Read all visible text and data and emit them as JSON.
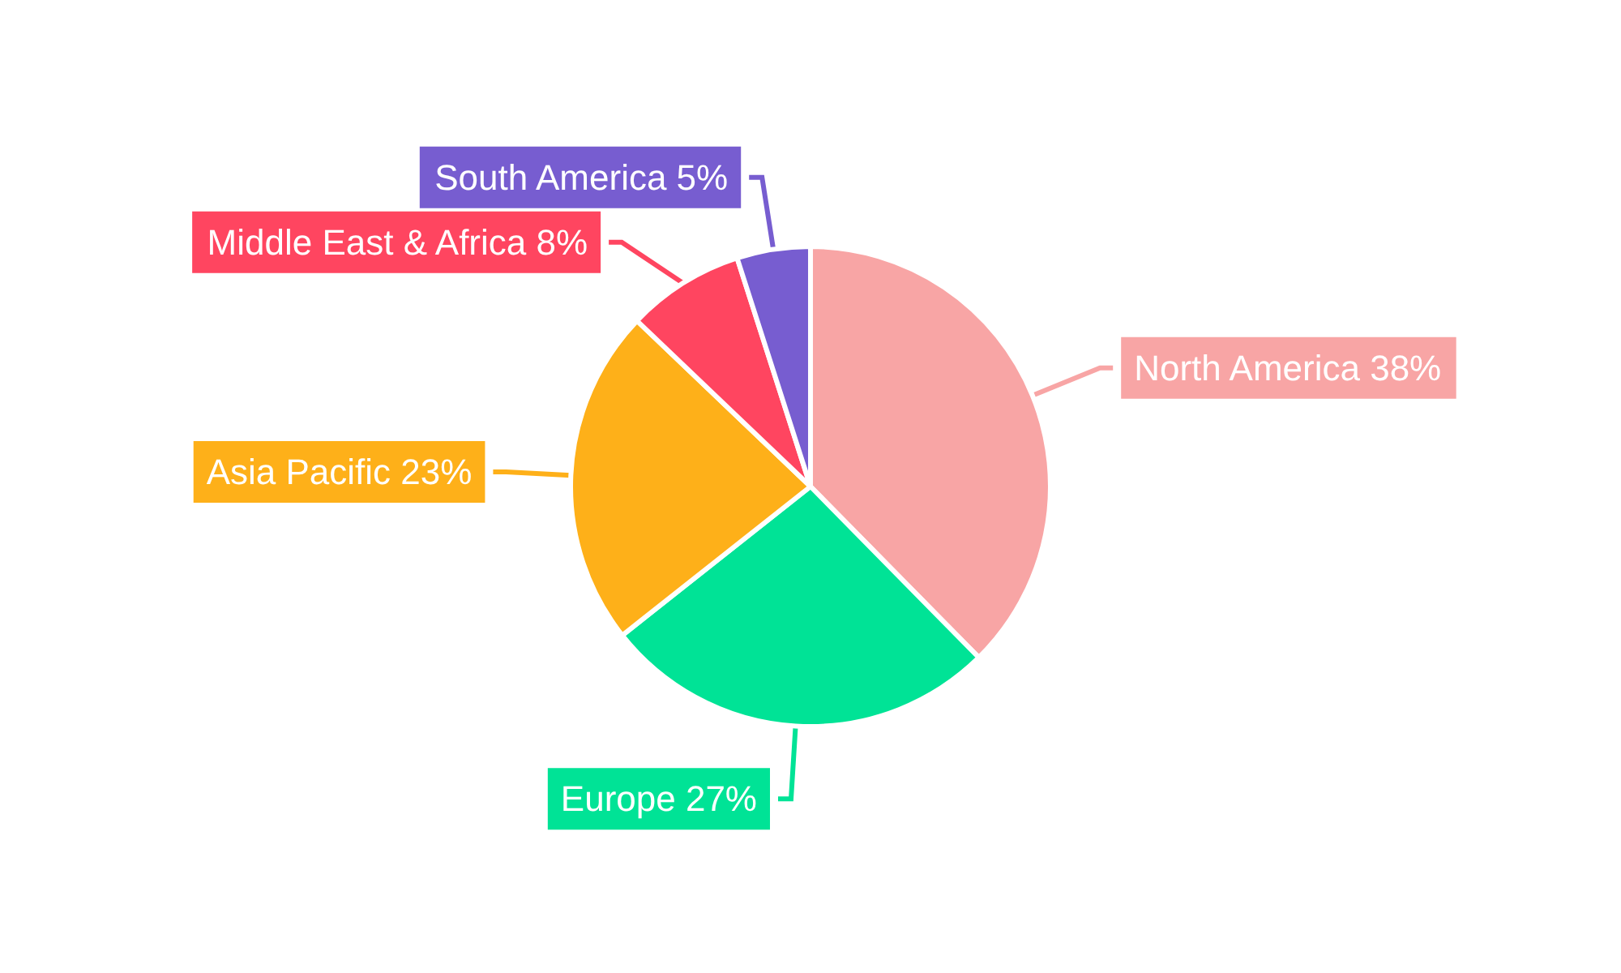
{
  "chart_data": {
    "type": "pie",
    "categories": [
      "North America",
      "Europe",
      "Asia Pacific",
      "Middle East & Africa",
      "South America"
    ],
    "values": [
      38,
      27,
      23,
      8,
      5
    ],
    "colors": [
      "#f8a5a5",
      "#00e396",
      "#feb019",
      "#ff4560",
      "#775dd0"
    ],
    "value_labels": [
      "38%",
      "27%",
      "23%",
      "8%",
      "5%"
    ],
    "legend": false
  }
}
